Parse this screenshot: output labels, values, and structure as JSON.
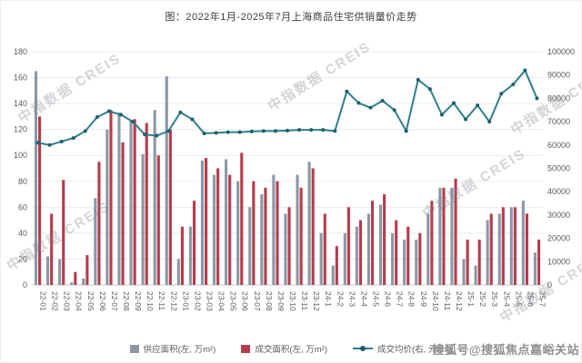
{
  "page": {
    "title": "图：2022年1月-2025年7月上海商品住宅供销量价走势"
  },
  "watermarks": {
    "creis": "中指数据 CREIS",
    "sohu": "搜狐号@搜狐焦点嘉峪关站"
  },
  "legend": {
    "supply": "供应面积(左, 万m²)",
    "deal": "成交面积(左, 万m²)",
    "price": "成交均价(右, 元/m²)"
  },
  "chart_data": {
    "type": "bar",
    "subtype": "bar+line combo",
    "title": "图：2022年1月-2025年7月上海商品住宅供销量价走势",
    "grid": true,
    "legend_position": "bottom",
    "left_axis": {
      "min": 0,
      "max": 180,
      "step": 20
    },
    "right_axis": {
      "min": 0,
      "max": 100000,
      "step": 10000
    },
    "categories": [
      "22-01",
      "22-02",
      "22-03",
      "22-04",
      "22-05",
      "22-06",
      "22-07",
      "22-08",
      "22-09",
      "22-10",
      "22-11",
      "22-12",
      "23-01",
      "23-02",
      "23-03",
      "23-04",
      "23-05",
      "23-06",
      "23-07",
      "23-08",
      "23-09",
      "23-10",
      "23-11",
      "23-12",
      "24-1",
      "24-2",
      "24-3",
      "24-4",
      "24-5",
      "24-6",
      "24-7",
      "24-8",
      "24-9",
      "24-10",
      "24-11",
      "24-12",
      "25-1",
      "25-2",
      "25-3",
      "25-4",
      "25-5",
      "25-6",
      "25-7"
    ],
    "series": [
      {
        "name": "供应面积(左, 万m²)",
        "type": "bar",
        "axis": "left",
        "color": "#8b98a5",
        "values": [
          165,
          22,
          20,
          2,
          5,
          67,
          120,
          133,
          127,
          101,
          135,
          161,
          20,
          45,
          96,
          85,
          97,
          80,
          60,
          70,
          85,
          55,
          85,
          95,
          40,
          15,
          40,
          45,
          55,
          62,
          40,
          35,
          35,
          55,
          75,
          75,
          20,
          15,
          50,
          55,
          60,
          65,
          25
        ]
      },
      {
        "name": "成交面积(左, 万m²)",
        "type": "bar",
        "axis": "left",
        "color": "#b63b4d",
        "values": [
          130,
          55,
          81,
          10,
          23,
          95,
          135,
          110,
          128,
          125,
          100,
          120,
          45,
          65,
          98,
          90,
          85,
          102,
          80,
          75,
          80,
          60,
          75,
          90,
          55,
          30,
          60,
          50,
          65,
          70,
          50,
          45,
          40,
          65,
          75,
          82,
          35,
          35,
          55,
          60,
          60,
          55,
          35
        ]
      },
      {
        "name": "成交均价(右, 元/m²)",
        "type": "line",
        "axis": "right",
        "color": "#2e7f8e",
        "marker_color": "#1d5f6d",
        "values": [
          61000,
          60000,
          61500,
          63000,
          66000,
          72000,
          74500,
          73000,
          70000,
          64500,
          64000,
          66000,
          74000,
          71000,
          65000,
          65200,
          65500,
          65500,
          65800,
          66000,
          66000,
          66200,
          66500,
          66500,
          66500,
          66000,
          83000,
          78000,
          76000,
          79000,
          75000,
          66000,
          88000,
          84000,
          73000,
          78000,
          71000,
          77000,
          70000,
          82000,
          86000,
          92000,
          80000
        ]
      }
    ]
  }
}
